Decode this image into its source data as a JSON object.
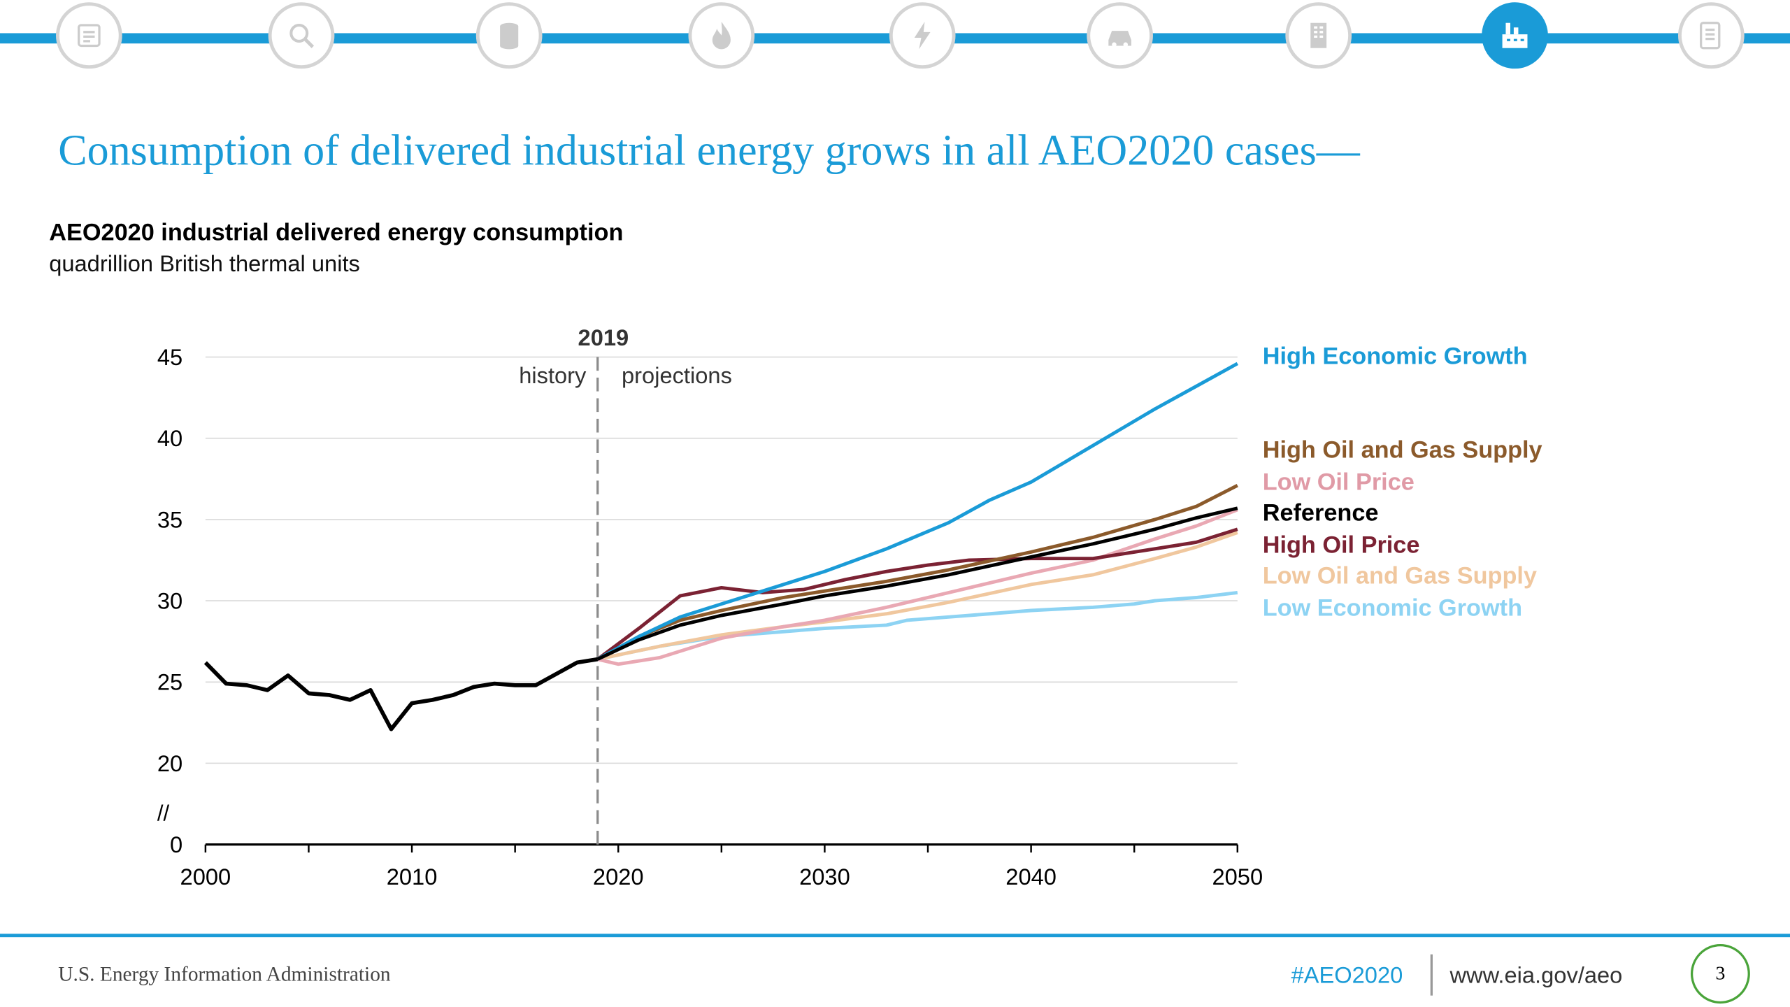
{
  "nav": {
    "items": [
      {
        "name": "nav-overview-icon",
        "active": false
      },
      {
        "name": "nav-analysis-icon",
        "active": false
      },
      {
        "name": "nav-petroleum-icon",
        "active": false
      },
      {
        "name": "nav-natural-gas-icon",
        "active": false
      },
      {
        "name": "nav-electricity-icon",
        "active": false
      },
      {
        "name": "nav-transportation-icon",
        "active": false
      },
      {
        "name": "nav-buildings-icon",
        "active": false
      },
      {
        "name": "nav-industrial-icon",
        "active": true
      },
      {
        "name": "nav-documents-icon",
        "active": false
      }
    ],
    "accent": "#1a9bd7",
    "inactive_border": "#d4d4d4"
  },
  "slide": {
    "title": "Consumption of delivered industrial energy grows in all AEO2020 cases—"
  },
  "chart_data": {
    "type": "line",
    "title": "AEO2020 industrial delivered energy consumption",
    "subtitle": "quadrillion British thermal units",
    "xlim": [
      2000,
      2050
    ],
    "x_ticks": [
      2000,
      2010,
      2020,
      2030,
      2040,
      2050
    ],
    "y_ticks": [
      0,
      20,
      25,
      30,
      35,
      40,
      45
    ],
    "y_ticks_labels": [
      "0",
      "20",
      "25",
      "30",
      "35",
      "40",
      "45"
    ],
    "axis_break": "//",
    "y_break": [
      0,
      20
    ],
    "ylim": [
      20,
      45
    ],
    "grid": true,
    "divider": {
      "x": 2019,
      "label": "2019",
      "left_label": "history",
      "right_label": "projections"
    },
    "history": {
      "color": "#000000",
      "x": [
        2000,
        2001,
        2002,
        2003,
        2004,
        2005,
        2006,
        2007,
        2008,
        2009,
        2010,
        2011,
        2012,
        2013,
        2014,
        2015,
        2016,
        2017,
        2018,
        2019
      ],
      "y": [
        26.2,
        24.9,
        24.8,
        24.5,
        25.4,
        24.3,
        24.2,
        23.9,
        24.5,
        22.1,
        23.7,
        23.9,
        24.2,
        24.7,
        24.9,
        24.8,
        24.8,
        25.5,
        26.2,
        26.4
      ]
    },
    "series": [
      {
        "name": "High Economic Growth",
        "color": "#1a9bd7",
        "label_color": "#1a9bd7",
        "x": [
          2019,
          2021,
          2023,
          2025,
          2028,
          2030,
          2033,
          2036,
          2038,
          2040,
          2042,
          2044,
          2046,
          2048,
          2050
        ],
        "y": [
          26.4,
          27.8,
          29.0,
          29.8,
          31.0,
          31.8,
          33.2,
          34.8,
          36.2,
          37.3,
          38.8,
          40.3,
          41.8,
          43.2,
          44.6
        ]
      },
      {
        "name": "High Oil and Gas Supply",
        "color": "#8b5a2b",
        "label_color": "#8b5a2b",
        "x": [
          2019,
          2021,
          2023,
          2025,
          2028,
          2030,
          2033,
          2036,
          2040,
          2043,
          2046,
          2048,
          2050
        ],
        "y": [
          26.4,
          27.8,
          28.8,
          29.4,
          30.2,
          30.6,
          31.2,
          31.9,
          33.0,
          33.9,
          35.0,
          35.8,
          37.1
        ]
      },
      {
        "name": "Low Oil Price",
        "color": "#e9a8b3",
        "label_color": "#e09aa6",
        "x": [
          2019,
          2020,
          2022,
          2025,
          2028,
          2030,
          2033,
          2036,
          2040,
          2043,
          2046,
          2048,
          2050
        ],
        "y": [
          26.4,
          26.1,
          26.5,
          27.7,
          28.4,
          28.8,
          29.6,
          30.5,
          31.7,
          32.5,
          33.8,
          34.6,
          35.6
        ]
      },
      {
        "name": "Reference",
        "color": "#000000",
        "label_color": "#000000",
        "x": [
          2019,
          2021,
          2023,
          2025,
          2028,
          2030,
          2033,
          2036,
          2040,
          2043,
          2046,
          2048,
          2050
        ],
        "y": [
          26.4,
          27.6,
          28.5,
          29.1,
          29.8,
          30.3,
          30.9,
          31.6,
          32.7,
          33.5,
          34.4,
          35.1,
          35.7
        ]
      },
      {
        "name": "High Oil Price",
        "color": "#7b2233",
        "label_color": "#7b2233",
        "x": [
          2019,
          2021,
          2023,
          2025,
          2027,
          2029,
          2031,
          2033,
          2035,
          2037,
          2040,
          2043,
          2046,
          2048,
          2050
        ],
        "y": [
          26.4,
          28.3,
          30.3,
          30.8,
          30.5,
          30.7,
          31.3,
          31.8,
          32.2,
          32.5,
          32.6,
          32.6,
          33.2,
          33.6,
          34.4
        ]
      },
      {
        "name": "Low Oil and Gas Supply",
        "color": "#f0c79e",
        "label_color": "#f0c79e",
        "x": [
          2019,
          2022,
          2025,
          2028,
          2030,
          2033,
          2036,
          2040,
          2043,
          2046,
          2048,
          2050
        ],
        "y": [
          26.4,
          27.2,
          27.9,
          28.4,
          28.7,
          29.2,
          29.9,
          31.0,
          31.6,
          32.6,
          33.3,
          34.2
        ]
      },
      {
        "name": "Low Economic Growth",
        "color": "#8dd3f3",
        "label_color": "#8dd3f3",
        "x": [
          2019,
          2022,
          2025,
          2028,
          2030,
          2033,
          2034,
          2036,
          2038,
          2040,
          2043,
          2045,
          2046,
          2048,
          2050
        ],
        "y": [
          26.4,
          27.2,
          27.8,
          28.1,
          28.3,
          28.5,
          28.8,
          29.0,
          29.2,
          29.4,
          29.6,
          29.8,
          30.0,
          30.2,
          30.5
        ]
      }
    ]
  },
  "footer": {
    "org": "U.S. Energy Information Administration",
    "hashtag": "#AEO2020",
    "url": "www.eia.gov/aeo",
    "page_number": "3"
  }
}
